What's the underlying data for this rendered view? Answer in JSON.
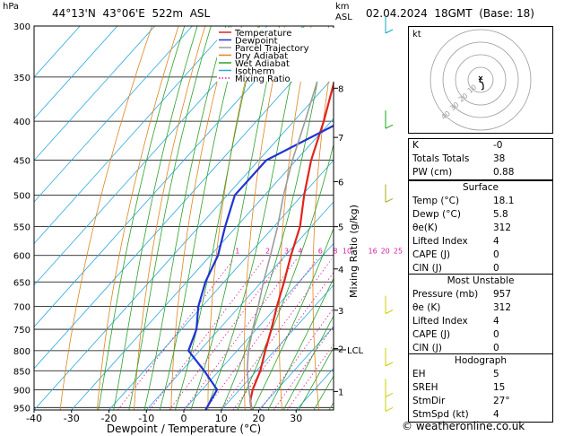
{
  "header": {
    "pressure_unit": "hPa",
    "location": "44°13'N  43°06'E  522m  ASL",
    "altitude_unit_line1": "km",
    "altitude_unit_line2": "ASL",
    "datetime": "02.04.2024  18GMT  (Base: 18)"
  },
  "footer": {
    "copyright": "© weatheronline.co.uk"
  },
  "chart_data": {
    "type": "line",
    "title": "44°13'N  43°06'E  522m  ASL",
    "xlabel": "Dewpoint / Temperature (°C)",
    "ylabel": "hPa",
    "secondary_ylabel": "Mixing Ratio (g/kg)",
    "x_ticks": [
      -40,
      -30,
      -20,
      -10,
      0,
      10,
      20,
      30
    ],
    "xlim": [
      -40,
      40
    ],
    "pressure_levels": [
      300,
      350,
      400,
      450,
      500,
      550,
      600,
      650,
      700,
      750,
      800,
      850,
      900,
      950
    ],
    "ylim": [
      300,
      957
    ],
    "y_scale": "log",
    "altitude_km_ticks": [
      {
        "km": 1,
        "p": 905
      },
      {
        "km": 2,
        "p": 795
      },
      {
        "km": 3,
        "p": 708
      },
      {
        "km": 4,
        "p": 625
      },
      {
        "km": 5,
        "p": 550
      },
      {
        "km": 6,
        "p": 480
      },
      {
        "km": 7,
        "p": 420
      },
      {
        "km": 8,
        "p": 362
      }
    ],
    "lcl": {
      "label": "LCL",
      "p": 798
    },
    "mixing_ratio_labels": [
      "1",
      "2",
      "3",
      "4",
      "6",
      "8",
      "10",
      "16",
      "20",
      "25"
    ],
    "legend": [
      {
        "name": "Temperature",
        "color": "#e0241c"
      },
      {
        "name": "Dewpoint",
        "color": "#1f33d6"
      },
      {
        "name": "Parcel Trajectory",
        "color": "#9c9c9c"
      },
      {
        "name": "Dry Adiabat",
        "color": "#e0841c"
      },
      {
        "name": "Wet Adiabat",
        "color": "#2aa02a"
      },
      {
        "name": "Isotherm",
        "color": "#29a9e0"
      },
      {
        "name": "Mixing Ratio",
        "color": "#d41ca0"
      }
    ],
    "series": [
      {
        "name": "Temperature",
        "color": "#e0241c",
        "points": [
          [
            957,
            18.1
          ],
          [
            930,
            15.5
          ],
          [
            900,
            13.5
          ],
          [
            850,
            11
          ],
          [
            800,
            7.5
          ],
          [
            750,
            4
          ],
          [
            700,
            0
          ],
          [
            650,
            -4
          ],
          [
            600,
            -8.5
          ],
          [
            550,
            -13
          ],
          [
            500,
            -19.5
          ],
          [
            450,
            -26
          ],
          [
            400,
            -32
          ],
          [
            350,
            -39.5
          ],
          [
            300,
            -47
          ]
        ]
      },
      {
        "name": "Dewpoint",
        "color": "#1f33d6",
        "points": [
          [
            957,
            5.8
          ],
          [
            900,
            4
          ],
          [
            850,
            -4
          ],
          [
            800,
            -13
          ],
          [
            750,
            -16
          ],
          [
            700,
            -21
          ],
          [
            650,
            -25
          ],
          [
            600,
            -28
          ],
          [
            550,
            -33
          ],
          [
            500,
            -38
          ],
          [
            450,
            -38
          ],
          [
            400,
            -27
          ],
          [
            350,
            -34
          ],
          [
            300,
            -46
          ]
        ]
      },
      {
        "name": "Parcel Trajectory",
        "color": "#9c9c9c",
        "points": [
          [
            957,
            18.1
          ],
          [
            900,
            12.5
          ],
          [
            850,
            7.5
          ],
          [
            800,
            3
          ],
          [
            750,
            -1
          ],
          [
            700,
            -5
          ],
          [
            650,
            -9.5
          ],
          [
            600,
            -14
          ],
          [
            550,
            -19
          ],
          [
            500,
            -25
          ],
          [
            450,
            -31
          ],
          [
            400,
            -37
          ],
          [
            350,
            -44
          ],
          [
            300,
            -51
          ]
        ]
      }
    ]
  },
  "hodograph": {
    "label": "kt",
    "ring_labels": [
      "40",
      "30",
      "20",
      "10"
    ]
  },
  "indices_panel": [
    {
      "label": "K",
      "value": "-0"
    },
    {
      "label": "Totals Totals",
      "value": "38"
    },
    {
      "label": "PW (cm)",
      "value": "0.88"
    }
  ],
  "surface_panel": {
    "title": "Surface",
    "rows": [
      {
        "label": "Temp (°C)",
        "value": "18.1"
      },
      {
        "label": "Dewp (°C)",
        "value": "5.8"
      },
      {
        "label": "θe(K)",
        "value": "312"
      },
      {
        "label": "Lifted Index",
        "value": "4"
      },
      {
        "label": "CAPE (J)",
        "value": "0"
      },
      {
        "label": "CIN (J)",
        "value": "0"
      }
    ]
  },
  "unstable_panel": {
    "title": "Most Unstable",
    "rows": [
      {
        "label": "Pressure (mb)",
        "value": "957"
      },
      {
        "label": "θe (K)",
        "value": "312"
      },
      {
        "label": "Lifted Index",
        "value": "4"
      },
      {
        "label": "CAPE (J)",
        "value": "0"
      },
      {
        "label": "CIN (J)",
        "value": "0"
      }
    ]
  },
  "hodograph_panel": {
    "title": "Hodograph",
    "rows": [
      {
        "label": "EH",
        "value": "5"
      },
      {
        "label": "SREH",
        "value": "15"
      },
      {
        "label": "StmDir",
        "value": "27°"
      },
      {
        "label": "StmSpd (kt)",
        "value": "4"
      }
    ]
  }
}
